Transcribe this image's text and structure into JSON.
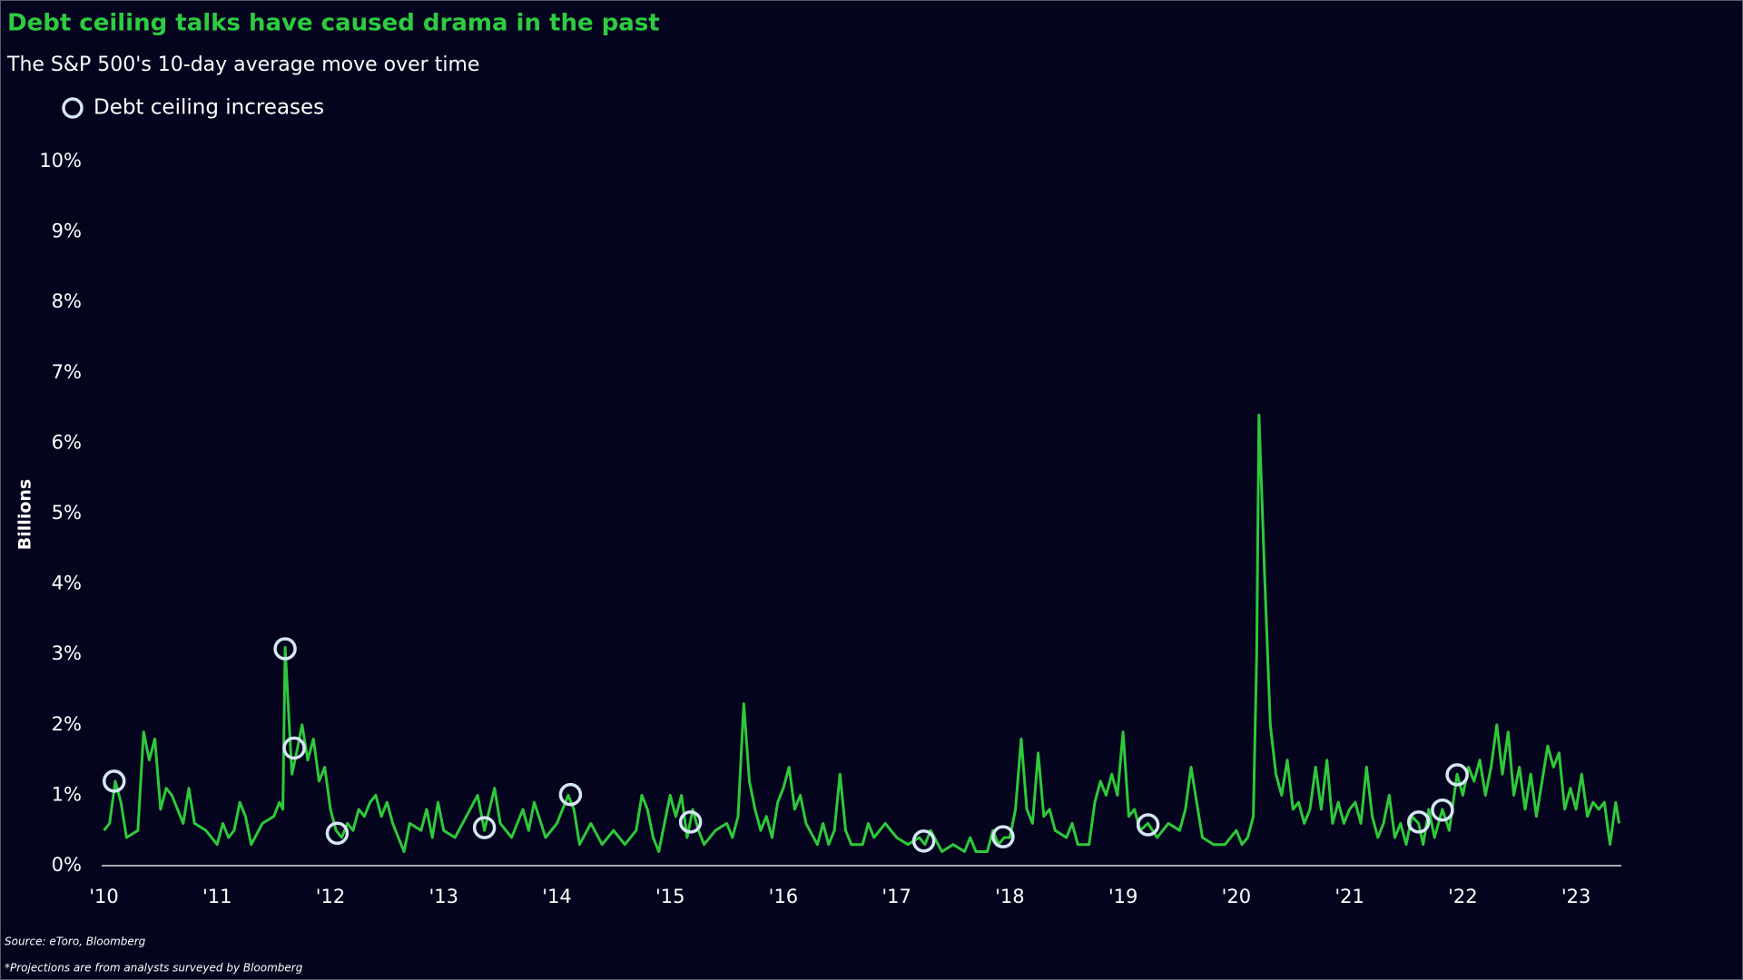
{
  "chart_data": {
    "type": "line",
    "title": "Debt ceiling talks have caused drama in the past",
    "subtitle": "The S&P 500's 10-day average move over time",
    "y_label": "Billions",
    "source": "Source: eToro, Bloomberg",
    "note": "*Projections are from analysts surveyed by Bloomberg",
    "title_color": "#2ecc40",
    "xlim": [
      2009.98,
      2023.4
    ],
    "ylim": [
      0,
      10
    ],
    "xticks": [
      {
        "value": 2010,
        "label": "'10"
      },
      {
        "value": 2011,
        "label": "'11"
      },
      {
        "value": 2012,
        "label": "'12"
      },
      {
        "value": 2013,
        "label": "'13"
      },
      {
        "value": 2014,
        "label": "'14"
      },
      {
        "value": 2015,
        "label": "'15"
      },
      {
        "value": 2016,
        "label": "'16"
      },
      {
        "value": 2017,
        "label": "'17"
      },
      {
        "value": 2018,
        "label": "'18"
      },
      {
        "value": 2019,
        "label": "'19"
      },
      {
        "value": 2020,
        "label": "'20"
      },
      {
        "value": 2021,
        "label": "'21"
      },
      {
        "value": 2022,
        "label": "'22"
      },
      {
        "value": 2023,
        "label": "'23"
      }
    ],
    "yticks": [
      {
        "value": 0,
        "label": "0%"
      },
      {
        "value": 1,
        "label": "1%"
      },
      {
        "value": 2,
        "label": "2%"
      },
      {
        "value": 3,
        "label": "3%"
      },
      {
        "value": 4,
        "label": "4%"
      },
      {
        "value": 5,
        "label": "5%"
      },
      {
        "value": 6,
        "label": "6%"
      },
      {
        "value": 7,
        "label": "7%"
      },
      {
        "value": 8,
        "label": "8%"
      },
      {
        "value": 9,
        "label": "9%"
      },
      {
        "value": 10,
        "label": "10%"
      }
    ],
    "line": {
      "color": "#2ec93a",
      "x": [
        2010.0,
        2010.05,
        2010.1,
        2010.15,
        2010.2,
        2010.3,
        2010.35,
        2010.4,
        2010.45,
        2010.5,
        2010.55,
        2010.6,
        2010.7,
        2010.75,
        2010.8,
        2010.9,
        2011.0,
        2011.05,
        2011.1,
        2011.15,
        2011.2,
        2011.25,
        2011.3,
        2011.4,
        2011.5,
        2011.55,
        2011.58,
        2011.6,
        2011.63,
        2011.66,
        2011.7,
        2011.75,
        2011.8,
        2011.85,
        2011.9,
        2011.95,
        2012.0,
        2012.05,
        2012.1,
        2012.15,
        2012.2,
        2012.25,
        2012.3,
        2012.35,
        2012.4,
        2012.45,
        2012.5,
        2012.55,
        2012.6,
        2012.65,
        2012.7,
        2012.8,
        2012.85,
        2012.9,
        2012.95,
        2013.0,
        2013.1,
        2013.2,
        2013.3,
        2013.36,
        2013.45,
        2013.5,
        2013.6,
        2013.7,
        2013.75,
        2013.8,
        2013.9,
        2014.0,
        2014.1,
        2014.15,
        2014.2,
        2014.3,
        2014.4,
        2014.5,
        2014.6,
        2014.7,
        2014.75,
        2014.8,
        2014.85,
        2014.9,
        2015.0,
        2015.05,
        2015.1,
        2015.15,
        2015.2,
        2015.25,
        2015.3,
        2015.4,
        2015.5,
        2015.55,
        2015.6,
        2015.65,
        2015.7,
        2015.75,
        2015.8,
        2015.85,
        2015.9,
        2015.95,
        2016.0,
        2016.05,
        2016.1,
        2016.15,
        2016.2,
        2016.3,
        2016.35,
        2016.4,
        2016.45,
        2016.5,
        2016.55,
        2016.6,
        2016.7,
        2016.75,
        2016.8,
        2016.9,
        2017.0,
        2017.1,
        2017.2,
        2017.25,
        2017.3,
        2017.4,
        2017.5,
        2017.6,
        2017.65,
        2017.7,
        2017.8,
        2017.85,
        2017.9,
        2017.95,
        2018.0,
        2018.05,
        2018.1,
        2018.15,
        2018.2,
        2018.25,
        2018.3,
        2018.35,
        2018.4,
        2018.5,
        2018.55,
        2018.6,
        2018.7,
        2018.75,
        2018.8,
        2018.85,
        2018.9,
        2018.95,
        2019.0,
        2019.05,
        2019.1,
        2019.15,
        2019.22,
        2019.3,
        2019.4,
        2019.5,
        2019.55,
        2019.6,
        2019.65,
        2019.7,
        2019.8,
        2019.9,
        2020.0,
        2020.05,
        2020.1,
        2020.15,
        2020.18,
        2020.2,
        2020.22,
        2020.25,
        2020.3,
        2020.35,
        2020.4,
        2020.45,
        2020.5,
        2020.55,
        2020.6,
        2020.65,
        2020.7,
        2020.75,
        2020.8,
        2020.85,
        2020.9,
        2020.95,
        2021.0,
        2021.05,
        2021.1,
        2021.15,
        2021.2,
        2021.25,
        2021.3,
        2021.35,
        2021.4,
        2021.45,
        2021.5,
        2021.55,
        2021.61,
        2021.65,
        2021.7,
        2021.75,
        2021.82,
        2021.88,
        2021.95,
        2022.0,
        2022.05,
        2022.1,
        2022.15,
        2022.2,
        2022.25,
        2022.3,
        2022.35,
        2022.4,
        2022.45,
        2022.5,
        2022.55,
        2022.6,
        2022.65,
        2022.7,
        2022.75,
        2022.8,
        2022.85,
        2022.9,
        2022.95,
        2023.0,
        2023.05,
        2023.1,
        2023.15,
        2023.2,
        2023.25,
        2023.3,
        2023.35,
        2023.38
      ],
      "values": [
        0.5,
        0.6,
        1.2,
        0.9,
        0.4,
        0.5,
        1.9,
        1.5,
        1.8,
        0.8,
        1.1,
        1.0,
        0.6,
        1.1,
        0.6,
        0.5,
        0.3,
        0.6,
        0.4,
        0.5,
        0.9,
        0.7,
        0.3,
        0.6,
        0.7,
        0.9,
        0.8,
        3.1,
        2.2,
        1.3,
        1.6,
        2.0,
        1.5,
        1.8,
        1.2,
        1.4,
        0.8,
        0.5,
        0.4,
        0.6,
        0.5,
        0.8,
        0.7,
        0.9,
        1.0,
        0.7,
        0.9,
        0.6,
        0.4,
        0.2,
        0.6,
        0.5,
        0.8,
        0.4,
        0.9,
        0.5,
        0.4,
        0.7,
        1.0,
        0.5,
        1.1,
        0.6,
        0.4,
        0.8,
        0.5,
        0.9,
        0.4,
        0.6,
        1.0,
        0.8,
        0.3,
        0.6,
        0.3,
        0.5,
        0.3,
        0.5,
        1.0,
        0.8,
        0.4,
        0.2,
        1.0,
        0.7,
        1.0,
        0.4,
        0.8,
        0.5,
        0.3,
        0.5,
        0.6,
        0.4,
        0.7,
        2.3,
        1.2,
        0.8,
        0.5,
        0.7,
        0.4,
        0.9,
        1.1,
        1.4,
        0.8,
        1.0,
        0.6,
        0.3,
        0.6,
        0.3,
        0.5,
        1.3,
        0.5,
        0.3,
        0.3,
        0.6,
        0.4,
        0.6,
        0.4,
        0.3,
        0.4,
        0.3,
        0.5,
        0.2,
        0.3,
        0.2,
        0.4,
        0.2,
        0.2,
        0.5,
        0.3,
        0.4,
        0.4,
        0.8,
        1.8,
        0.8,
        0.6,
        1.6,
        0.7,
        0.8,
        0.5,
        0.4,
        0.6,
        0.3,
        0.3,
        0.9,
        1.2,
        1.0,
        1.3,
        1.0,
        1.9,
        0.7,
        0.8,
        0.5,
        0.6,
        0.4,
        0.6,
        0.5,
        0.8,
        1.4,
        0.9,
        0.4,
        0.3,
        0.3,
        0.5,
        0.3,
        0.4,
        0.7,
        3.0,
        6.4,
        5.5,
        4.1,
        2.0,
        1.3,
        1.0,
        1.5,
        0.8,
        0.9,
        0.6,
        0.8,
        1.4,
        0.8,
        1.5,
        0.6,
        0.9,
        0.6,
        0.8,
        0.9,
        0.6,
        1.4,
        0.7,
        0.4,
        0.6,
        1.0,
        0.4,
        0.6,
        0.3,
        0.7,
        0.6,
        0.3,
        0.8,
        0.4,
        0.8,
        0.5,
        1.3,
        1.0,
        1.4,
        1.2,
        1.5,
        1.0,
        1.4,
        2.0,
        1.3,
        1.9,
        1.0,
        1.4,
        0.8,
        1.3,
        0.7,
        1.2,
        1.7,
        1.4,
        1.6,
        0.8,
        1.1,
        0.8,
        1.3,
        0.7,
        0.9,
        0.8,
        0.9,
        0.3,
        0.9,
        0.6
      ]
    },
    "markers": {
      "name": "Debt ceiling increases",
      "color": "#d6e6f5",
      "x": [
        2010.09,
        2011.6,
        2011.68,
        2012.06,
        2013.36,
        2014.12,
        2015.18,
        2017.24,
        2017.94,
        2019.22,
        2021.61,
        2021.82,
        2021.95
      ],
      "values": [
        1.2,
        3.08,
        1.67,
        0.46,
        0.54,
        1.01,
        0.62,
        0.35,
        0.41,
        0.58,
        0.62,
        0.79,
        1.29
      ]
    }
  }
}
